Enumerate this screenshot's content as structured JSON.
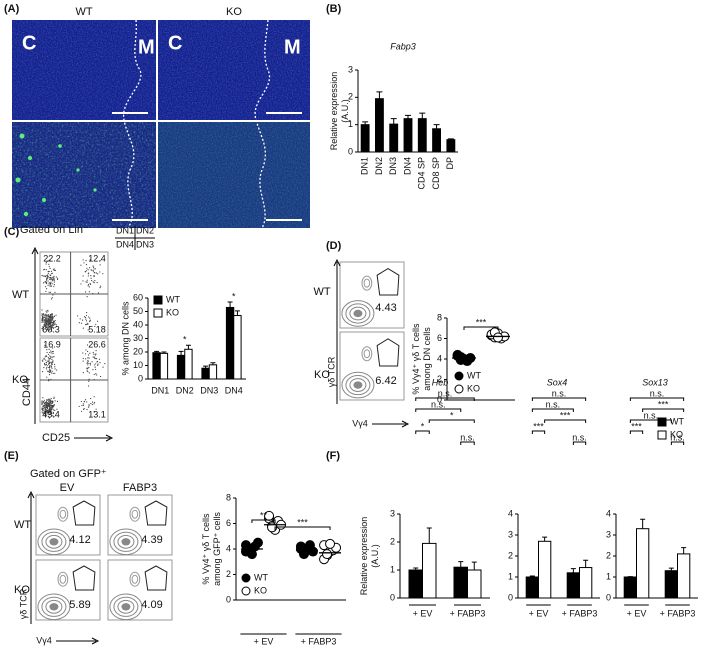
{
  "panels": {
    "labels": [
      "(A)",
      "(B)",
      "(C)",
      "(D)",
      "(E)",
      "(F)"
    ]
  },
  "panel_a": {
    "columns": [
      "WT",
      "KO"
    ],
    "cortex": "C",
    "medulla": "M"
  },
  "panel_c_flow": {
    "gate": "Gated on Lin⁻",
    "quadrants": [
      "DN1",
      "DN2",
      "DN4",
      "DN3"
    ],
    "rows": [
      "WT",
      "KO"
    ],
    "percentages": [
      [
        22.2,
        12.4,
        60.3,
        5.18
      ],
      [
        16.9,
        26.6,
        43.4,
        13.1
      ]
    ],
    "y_axis": "CD44",
    "x_axis": "CD25"
  },
  "panel_d_flow": {
    "rows": [
      "WT",
      "KO"
    ],
    "percentages": [
      4.43,
      6.42
    ],
    "y_axis": "γδ TCR",
    "x_axis": "Vγ4"
  },
  "panel_e_flow": {
    "gate": "Gated on GFP⁺",
    "columns": [
      "EV",
      "FABP3"
    ],
    "rows": [
      "WT",
      "KO"
    ],
    "percentages": [
      [
        4.12,
        4.39
      ],
      [
        5.89,
        4.09
      ]
    ],
    "y_axis": "γδ TCR",
    "x_axis": "Vγ4"
  },
  "chart_data": [
    {
      "type": "bar",
      "title": "Fabp3",
      "ylabel": [
        "Relative expression",
        "(A.U.)"
      ],
      "categories": [
        "DN1",
        "DN2",
        "DN3",
        "DN4",
        "CD4 SP",
        "CD8 SP",
        "DP"
      ],
      "values": [
        1.0,
        1.95,
        1.02,
        1.22,
        1.22,
        0.85,
        0.45
      ],
      "errors": [
        0.1,
        0.25,
        0.2,
        0.12,
        0.2,
        0.15,
        0.03
      ],
      "color": "#000000",
      "ylim": [
        0,
        3
      ],
      "yticks": [
        0,
        1,
        2,
        3
      ]
    },
    {
      "type": "grouped_bar",
      "ylabel": [
        "% among DN cells"
      ],
      "categories": [
        "DN1",
        "DN2",
        "DN3",
        "DN4"
      ],
      "series": [
        {
          "name": "WT",
          "color": "#000000",
          "values": [
            19.5,
            17.5,
            8,
            53
          ],
          "errors": [
            1,
            3,
            1.5,
            4
          ]
        },
        {
          "name": "KO",
          "color": "#ffffff",
          "values": [
            19,
            22,
            10.5,
            47
          ],
          "errors": [
            1,
            3,
            1.5,
            3.5
          ]
        }
      ],
      "ylim": [
        0,
        60
      ],
      "yticks": [
        0,
        10,
        20,
        30,
        40,
        50,
        60
      ],
      "annotations": [
        {
          "category": "DN2",
          "text": "*"
        },
        {
          "category": "DN4",
          "text": "*"
        }
      ],
      "legend": "upper left"
    },
    {
      "type": "dot",
      "ylabel": [
        "% Vγ4⁺ γδ T cells",
        "among DN cells"
      ],
      "series": [
        {
          "name": "WT",
          "color": "#000000",
          "values": [
            4.4,
            4.2,
            4.0,
            3.8,
            4.1,
            4.3,
            3.9,
            4.0
          ],
          "mean": 4.1
        },
        {
          "name": "KO",
          "color": "#ffffff",
          "values": [
            6.3,
            6.1,
            6.5,
            6.0,
            6.2,
            6.4,
            6.6,
            6.1
          ],
          "mean": 6.2
        }
      ],
      "ylim": [
        0,
        8
      ],
      "yticks": [
        0,
        2,
        4,
        6,
        8
      ],
      "annotations": [
        {
          "between": [
            0,
            1
          ],
          "text": "***"
        }
      ],
      "legend": "lower right"
    },
    {
      "type": "grouped_dot",
      "ylabel": [
        "% Vγ4⁺ γδ T cells",
        "among GFP⁺ cells"
      ],
      "categories": [
        "+ EV",
        "+ FABP3"
      ],
      "series": [
        {
          "name": "WT",
          "color": "#000000",
          "values": [
            [
              4.3,
              4.0,
              3.6,
              4.2,
              4.5,
              3.8
            ],
            [
              4.2,
              3.6,
              3.9,
              4.3,
              3.8,
              4.0
            ]
          ],
          "means": [
            4.0,
            3.9
          ]
        },
        {
          "name": "KO",
          "color": "#ffffff",
          "values": [
            [
              6.4,
              5.8,
              5.5,
              6.2,
              5.9,
              6.6,
              5.7
            ],
            [
              4.3,
              3.5,
              3.8,
              3.9,
              4.1,
              3.2,
              3.6,
              4.4
            ]
          ],
          "means": [
            5.9,
            3.7
          ]
        }
      ],
      "ylim": [
        0,
        8
      ],
      "yticks": [
        0,
        2,
        4,
        6,
        8
      ],
      "annotations": [
        {
          "between": [
            0,
            1
          ],
          "text": "**"
        },
        {
          "between": [
            1,
            3
          ],
          "text": "***"
        }
      ],
      "legend": "lower left"
    },
    {
      "type": "grouped_bar",
      "title": "Heb",
      "ylabel": [
        "Relative expression",
        "(A.U.)"
      ],
      "categories": [
        "+ EV",
        "+ FABP3"
      ],
      "series": [
        {
          "color": "#000000",
          "values": [
            1.0,
            1.1
          ],
          "errors": [
            0.07,
            0.2
          ]
        },
        {
          "color": "#ffffff",
          "values": [
            1.95,
            1.0
          ],
          "errors": [
            0.55,
            0.28
          ]
        }
      ],
      "ylim": [
        0,
        3
      ],
      "yticks": [
        0,
        1,
        2,
        3
      ],
      "annotations": [
        {
          "between": [
            0,
            3
          ],
          "text": "n.s."
        },
        {
          "between": [
            0,
            2
          ],
          "text": "n.s."
        },
        {
          "between": [
            1,
            3
          ],
          "text": "*"
        },
        {
          "between": [
            0,
            1
          ],
          "text": "*"
        },
        {
          "between": [
            2,
            3
          ],
          "text": "n.s."
        }
      ]
    },
    {
      "type": "grouped_bar",
      "title": "Sox4",
      "categories": [
        "+ EV",
        "+ FABP3"
      ],
      "series": [
        {
          "color": "#000000",
          "values": [
            1.0,
            1.2
          ],
          "errors": [
            0.05,
            0.2
          ]
        },
        {
          "color": "#ffffff",
          "values": [
            2.7,
            1.45
          ],
          "errors": [
            0.2,
            0.35
          ]
        }
      ],
      "ylim": [
        0,
        4
      ],
      "yticks": [
        0,
        1,
        2,
        3,
        4
      ],
      "annotations": [
        {
          "between": [
            0,
            3
          ],
          "text": "n.s."
        },
        {
          "between": [
            0,
            2
          ],
          "text": "n.s."
        },
        {
          "between": [
            1,
            3
          ],
          "text": "***"
        },
        {
          "between": [
            0,
            1
          ],
          "text": "***"
        },
        {
          "between": [
            2,
            3
          ],
          "text": "n.s."
        }
      ]
    },
    {
      "type": "grouped_bar",
      "title": "Sox13",
      "categories": [
        "+ EV",
        "+ FABP3"
      ],
      "series": [
        {
          "name": "WT",
          "color": "#000000",
          "values": [
            1.0,
            1.3
          ],
          "errors": [
            0.02,
            0.12
          ]
        },
        {
          "name": "KO",
          "color": "#ffffff",
          "values": [
            3.3,
            2.1
          ],
          "errors": [
            0.45,
            0.3
          ]
        }
      ],
      "ylim": [
        0,
        4
      ],
      "yticks": [
        0,
        1,
        2,
        3,
        4
      ],
      "annotations": [
        {
          "between": [
            0,
            3
          ],
          "text": "n.s."
        },
        {
          "between": [
            1,
            3
          ],
          "text": "***"
        },
        {
          "between": [
            0,
            2
          ],
          "text": "n.s."
        },
        {
          "between": [
            0,
            1
          ],
          "text": "***"
        },
        {
          "between": [
            2,
            3
          ],
          "text": "n.s."
        }
      ],
      "legend": "upper right"
    }
  ]
}
